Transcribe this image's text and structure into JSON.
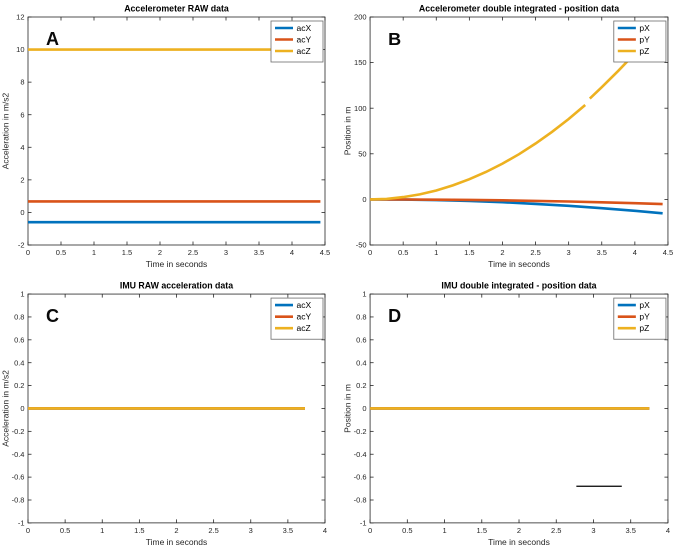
{
  "figure": {
    "background": "#ffffff",
    "panels": [
      "A",
      "B",
      "C",
      "D"
    ],
    "palette": {
      "blue": "#0072BD",
      "orange": "#D95319",
      "yellow": "#EDB120",
      "black": "#000000"
    }
  },
  "chart_data": [
    {
      "type": "line",
      "panel": "A",
      "title": "Accelerometer RAW data",
      "xlabel": "Time in seconds",
      "ylabel": "Acceleration in m/s2",
      "xlim": [
        0,
        4.5
      ],
      "ylim": [
        -2,
        12
      ],
      "grid": false,
      "legend_position": "top-right",
      "xticks": [
        0,
        0.5,
        1,
        1.5,
        2,
        2.5,
        3,
        3.5,
        4,
        4.5
      ],
      "xtick_labels": [
        "0",
        "0.5",
        "1",
        "1.5",
        "2",
        "2.5",
        "3",
        "3.5",
        "4",
        "4.5"
      ],
      "yticks": [
        -2,
        0,
        2,
        4,
        6,
        8,
        10,
        12
      ],
      "ytick_labels": [
        "-2",
        "0",
        "2",
        "4",
        "6",
        "8",
        "10",
        "12"
      ],
      "legend": [
        "acX",
        "acY",
        "acZ"
      ],
      "series": [
        {
          "name": "acX",
          "color": "#0072BD",
          "const": -0.6,
          "x_start": 0,
          "x_end": 4.43
        },
        {
          "name": "acY",
          "color": "#D95319",
          "const": 0.68,
          "x_start": 0,
          "x_end": 4.43
        },
        {
          "name": "acZ",
          "color": "#EDB120",
          "const": 10,
          "x_start": 0,
          "x_end": 4.43
        }
      ],
      "annotations": []
    },
    {
      "type": "line",
      "panel": "B",
      "title": "Accelerometer double integrated - position data",
      "xlabel": "Time in seconds",
      "ylabel": "Position in m",
      "xlim": [
        0,
        4.5
      ],
      "ylim": [
        -50,
        200
      ],
      "grid": false,
      "legend_position": "top-right",
      "xticks": [
        0,
        0.5,
        1,
        1.5,
        2,
        2.5,
        3,
        3.5,
        4,
        4.5
      ],
      "xtick_labels": [
        "0",
        "0.5",
        "1",
        "1.5",
        "2",
        "2.5",
        "3",
        "3.5",
        "4",
        "4.5"
      ],
      "yticks": [
        -50,
        0,
        50,
        100,
        150,
        200
      ],
      "ytick_labels": [
        "-50",
        "0",
        "50",
        "100",
        "150",
        "200"
      ],
      "legend": [
        "pX",
        "pY",
        "pZ"
      ],
      "series": [
        {
          "name": "pX",
          "color": "#0072BD",
          "points": [
            [
              0,
              0
            ],
            [
              0.5,
              -0.2
            ],
            [
              1,
              -0.8
            ],
            [
              1.5,
              -1.8
            ],
            [
              2,
              -3.1
            ],
            [
              2.5,
              -4.9
            ],
            [
              3,
              -7.0
            ],
            [
              3.5,
              -9.6
            ],
            [
              4,
              -12.5
            ],
            [
              4.42,
              -15.2
            ]
          ]
        },
        {
          "name": "pY",
          "color": "#D95319",
          "points": [
            [
              0,
              0
            ],
            [
              0.5,
              -0.1
            ],
            [
              1,
              -0.3
            ],
            [
              1.5,
              -0.6
            ],
            [
              2,
              -1.0
            ],
            [
              2.5,
              -1.6
            ],
            [
              3,
              -2.3
            ],
            [
              3.5,
              -3.2
            ],
            [
              4,
              -4.2
            ],
            [
              4.42,
              -5.1
            ]
          ]
        },
        {
          "name": "pZ",
          "color": "#EDB120",
          "points": [
            [
              0,
              0
            ],
            [
              0.25,
              0.6
            ],
            [
              0.5,
              2.5
            ],
            [
              0.75,
              5.5
            ],
            [
              1,
              9.8
            ],
            [
              1.25,
              15.3
            ],
            [
              1.5,
              22.1
            ],
            [
              1.75,
              30.0
            ],
            [
              2,
              39.2
            ],
            [
              2.25,
              49.6
            ],
            [
              2.5,
              61.3
            ],
            [
              2.75,
              74.1
            ],
            [
              3,
              88.2
            ],
            [
              3.25,
              103.5
            ],
            null,
            [
              3.32,
              110.5
            ],
            [
              3.5,
              123.0
            ],
            [
              3.75,
              141.0
            ],
            [
              4,
              160.0
            ],
            [
              4.2,
              176.0
            ],
            [
              4.45,
              192.0
            ]
          ]
        }
      ],
      "annotations": []
    },
    {
      "type": "line",
      "panel": "C",
      "title": "IMU RAW acceleration data",
      "xlabel": "Time in seconds",
      "ylabel": "Acceleration in m/s2",
      "xlim": [
        0,
        4
      ],
      "ylim": [
        -1,
        1
      ],
      "grid": false,
      "legend_position": "top-right",
      "xticks": [
        0,
        0.5,
        1,
        1.5,
        2,
        2.5,
        3,
        3.5,
        4
      ],
      "xtick_labels": [
        "0",
        "0.5",
        "1",
        "1.5",
        "2",
        "2.5",
        "3",
        "3.5",
        "4"
      ],
      "yticks": [
        -1,
        -0.8,
        -0.6,
        -0.4,
        -0.2,
        0,
        0.2,
        0.4,
        0.6,
        0.8,
        1
      ],
      "ytick_labels": [
        "-1",
        "-0.8",
        "-0.6",
        "-0.4",
        "-0.2",
        "0",
        "0.2",
        "0.4",
        "0.6",
        "0.8",
        "1"
      ],
      "legend": [
        "acX",
        "acY",
        "acZ"
      ],
      "series": [
        {
          "name": "acX",
          "color": "#0072BD",
          "const": 0,
          "x_start": 0,
          "x_end": 3.73
        },
        {
          "name": "acY",
          "color": "#D95319",
          "const": 0,
          "x_start": 0,
          "x_end": 3.73
        },
        {
          "name": "acZ",
          "color": "#EDB120",
          "const": 0,
          "x_start": 0,
          "x_end": 3.73
        }
      ],
      "annotations": []
    },
    {
      "type": "line",
      "panel": "D",
      "title": "IMU double integrated - position data",
      "xlabel": "Time in seconds",
      "ylabel": "Position in m",
      "xlim": [
        0,
        4
      ],
      "ylim": [
        -1,
        1
      ],
      "grid": false,
      "legend_position": "top-right",
      "xticks": [
        0,
        0.5,
        1,
        1.5,
        2,
        2.5,
        3,
        3.5,
        4
      ],
      "xtick_labels": [
        "0",
        "0.5",
        "1",
        "1.5",
        "2",
        "2.5",
        "3",
        "3.5",
        "4"
      ],
      "yticks": [
        -1,
        -0.8,
        -0.6,
        -0.4,
        -0.2,
        0,
        0.2,
        0.4,
        0.6,
        0.8,
        1
      ],
      "ytick_labels": [
        "-1",
        "-0.8",
        "-0.6",
        "-0.4",
        "-0.2",
        "0",
        "0.2",
        "0.4",
        "0.6",
        "0.8",
        "1"
      ],
      "legend": [
        "pX",
        "pY",
        "pZ"
      ],
      "series": [
        {
          "name": "pX",
          "color": "#0072BD",
          "const": 0,
          "x_start": 0,
          "x_end": 3.75
        },
        {
          "name": "pY",
          "color": "#D95319",
          "const": 0,
          "x_start": 0,
          "x_end": 3.75
        },
        {
          "name": "pZ",
          "color": "#EDB120",
          "const": 0,
          "x_start": 0,
          "x_end": 3.75
        }
      ],
      "annotations": [
        {
          "type": "line",
          "x": [
            2.77,
            3.38
          ],
          "y": [
            -0.68,
            -0.68
          ],
          "color": "#000000",
          "width": 1.2
        }
      ]
    }
  ]
}
